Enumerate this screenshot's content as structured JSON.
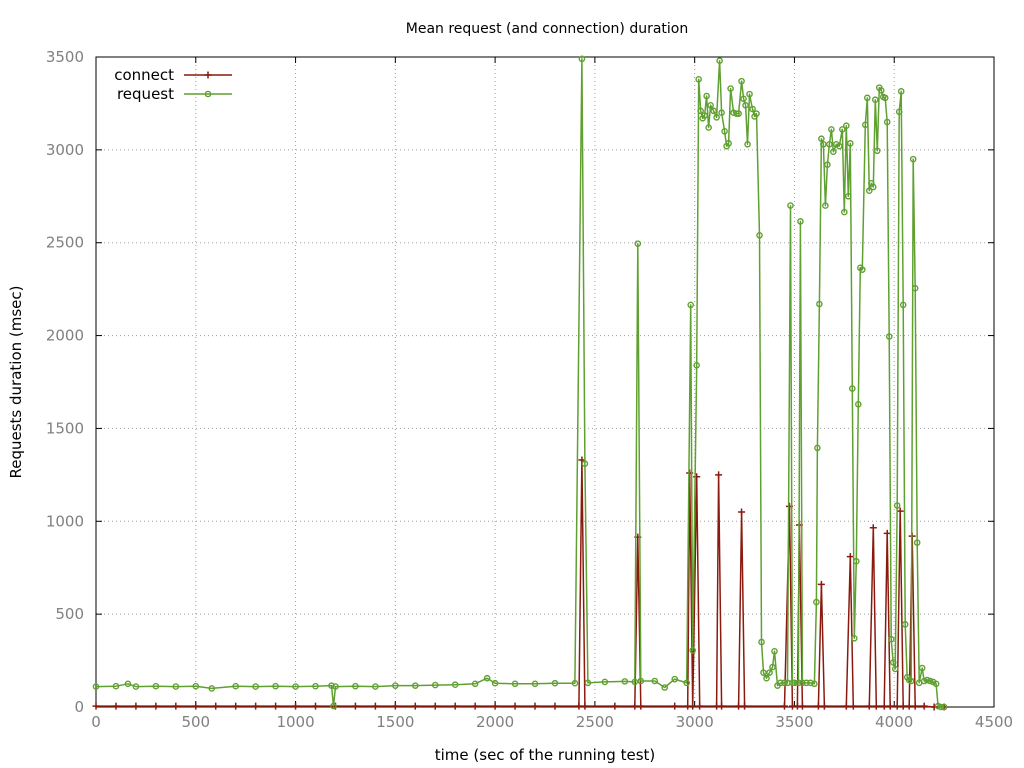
{
  "chart_data": {
    "type": "line",
    "title": "Mean request (and connection) duration",
    "xlabel": "time (sec of the running test)",
    "ylabel": "Requests duration (msec)",
    "xlim": [
      0,
      4500
    ],
    "ylim": [
      0,
      3500
    ],
    "xticks": [
      0,
      500,
      1000,
      1500,
      2000,
      2500,
      3000,
      3500,
      4000,
      4500
    ],
    "yticks": [
      0,
      500,
      1000,
      1500,
      2000,
      2500,
      3000,
      3500
    ],
    "grid": true,
    "legend": "top-left",
    "series": [
      {
        "name": "connect",
        "color": "#8b1a0e",
        "marker": "plus",
        "points": [
          [
            0,
            5
          ],
          [
            100,
            5
          ],
          [
            200,
            5
          ],
          [
            300,
            5
          ],
          [
            400,
            5
          ],
          [
            500,
            5
          ],
          [
            600,
            5
          ],
          [
            700,
            5
          ],
          [
            800,
            5
          ],
          [
            900,
            5
          ],
          [
            1000,
            5
          ],
          [
            1100,
            5
          ],
          [
            1200,
            5
          ],
          [
            1300,
            5
          ],
          [
            1400,
            5
          ],
          [
            1500,
            5
          ],
          [
            1600,
            5
          ],
          [
            1700,
            5
          ],
          [
            1800,
            5
          ],
          [
            1900,
            5
          ],
          [
            2000,
            5
          ],
          [
            2100,
            5
          ],
          [
            2200,
            5
          ],
          [
            2300,
            5
          ],
          [
            2420,
            5
          ],
          [
            2435,
            1330
          ],
          [
            2450,
            5
          ],
          [
            2600,
            5
          ],
          [
            2700,
            5
          ],
          [
            2715,
            915
          ],
          [
            2730,
            5
          ],
          [
            2900,
            5
          ],
          [
            2965,
            5
          ],
          [
            2975,
            1260
          ],
          [
            2990,
            5
          ],
          [
            3010,
            1240
          ],
          [
            3025,
            5
          ],
          [
            3110,
            5
          ],
          [
            3120,
            1250
          ],
          [
            3135,
            5
          ],
          [
            3220,
            5
          ],
          [
            3235,
            1050
          ],
          [
            3250,
            5
          ],
          [
            3450,
            5
          ],
          [
            3475,
            1080
          ],
          [
            3490,
            5
          ],
          [
            3515,
            5
          ],
          [
            3525,
            980
          ],
          [
            3540,
            5
          ],
          [
            3620,
            5
          ],
          [
            3635,
            660
          ],
          [
            3650,
            5
          ],
          [
            3760,
            5
          ],
          [
            3780,
            810
          ],
          [
            3795,
            5
          ],
          [
            3875,
            5
          ],
          [
            3895,
            965
          ],
          [
            3910,
            5
          ],
          [
            3950,
            5
          ],
          [
            3965,
            935
          ],
          [
            3980,
            5
          ],
          [
            4015,
            5
          ],
          [
            4030,
            1055
          ],
          [
            4045,
            5
          ],
          [
            4075,
            5
          ],
          [
            4090,
            920
          ],
          [
            4105,
            5
          ],
          [
            4150,
            5
          ],
          [
            4200,
            0
          ],
          [
            4250,
            0
          ]
        ]
      },
      {
        "name": "request",
        "color": "#5fa030",
        "marker": "circle",
        "points": [
          [
            0,
            110
          ],
          [
            100,
            112
          ],
          [
            160,
            125
          ],
          [
            200,
            110
          ],
          [
            300,
            112
          ],
          [
            400,
            110
          ],
          [
            500,
            112
          ],
          [
            580,
            100
          ],
          [
            700,
            112
          ],
          [
            800,
            110
          ],
          [
            900,
            112
          ],
          [
            1000,
            110
          ],
          [
            1100,
            112
          ],
          [
            1180,
            115
          ],
          [
            1190,
            5
          ],
          [
            1200,
            110
          ],
          [
            1300,
            112
          ],
          [
            1400,
            110
          ],
          [
            1500,
            115
          ],
          [
            1600,
            115
          ],
          [
            1700,
            118
          ],
          [
            1800,
            120
          ],
          [
            1900,
            125
          ],
          [
            1960,
            155
          ],
          [
            2000,
            128
          ],
          [
            2100,
            125
          ],
          [
            2200,
            125
          ],
          [
            2300,
            128
          ],
          [
            2400,
            128
          ],
          [
            2435,
            3490
          ],
          [
            2450,
            1310
          ],
          [
            2465,
            130
          ],
          [
            2550,
            135
          ],
          [
            2650,
            138
          ],
          [
            2700,
            135
          ],
          [
            2715,
            2495
          ],
          [
            2730,
            140
          ],
          [
            2800,
            140
          ],
          [
            2850,
            105
          ],
          [
            2900,
            150
          ],
          [
            2960,
            130
          ],
          [
            2980,
            2165
          ],
          [
            2990,
            305
          ],
          [
            3010,
            1840
          ],
          [
            3020,
            3380
          ],
          [
            3030,
            3210
          ],
          [
            3040,
            3170
          ],
          [
            3050,
            3185
          ],
          [
            3060,
            3290
          ],
          [
            3070,
            3120
          ],
          [
            3080,
            3240
          ],
          [
            3095,
            3210
          ],
          [
            3110,
            3175
          ],
          [
            3125,
            3480
          ],
          [
            3135,
            3200
          ],
          [
            3150,
            3100
          ],
          [
            3160,
            3020
          ],
          [
            3170,
            3035
          ],
          [
            3180,
            3330
          ],
          [
            3195,
            3200
          ],
          [
            3210,
            3195
          ],
          [
            3220,
            3195
          ],
          [
            3235,
            3370
          ],
          [
            3245,
            3275
          ],
          [
            3255,
            3240
          ],
          [
            3265,
            3030
          ],
          [
            3275,
            3300
          ],
          [
            3290,
            3220
          ],
          [
            3300,
            3180
          ],
          [
            3310,
            3195
          ],
          [
            3325,
            2540
          ],
          [
            3335,
            350
          ],
          [
            3345,
            185
          ],
          [
            3360,
            155
          ],
          [
            3375,
            185
          ],
          [
            3390,
            215
          ],
          [
            3400,
            300
          ],
          [
            3415,
            115
          ],
          [
            3430,
            130
          ],
          [
            3450,
            130
          ],
          [
            3465,
            130
          ],
          [
            3480,
            2700
          ],
          [
            3490,
            130
          ],
          [
            3500,
            130
          ],
          [
            3520,
            130
          ],
          [
            3530,
            2615
          ],
          [
            3540,
            130
          ],
          [
            3560,
            130
          ],
          [
            3580,
            130
          ],
          [
            3600,
            125
          ],
          [
            3610,
            565
          ],
          [
            3615,
            1395
          ],
          [
            3625,
            2170
          ],
          [
            3635,
            3060
          ],
          [
            3645,
            3030
          ],
          [
            3655,
            2700
          ],
          [
            3665,
            2920
          ],
          [
            3675,
            3030
          ],
          [
            3685,
            3110
          ],
          [
            3695,
            2990
          ],
          [
            3710,
            3030
          ],
          [
            3725,
            3020
          ],
          [
            3740,
            3110
          ],
          [
            3750,
            2665
          ],
          [
            3760,
            3130
          ],
          [
            3770,
            2750
          ],
          [
            3780,
            3035
          ],
          [
            3790,
            1715
          ],
          [
            3800,
            370
          ],
          [
            3810,
            785
          ],
          [
            3820,
            1630
          ],
          [
            3830,
            2365
          ],
          [
            3840,
            2355
          ],
          [
            3855,
            3135
          ],
          [
            3865,
            3280
          ],
          [
            3875,
            2780
          ],
          [
            3885,
            2820
          ],
          [
            3895,
            2800
          ],
          [
            3905,
            3270
          ],
          [
            3915,
            2995
          ],
          [
            3925,
            3335
          ],
          [
            3935,
            3320
          ],
          [
            3945,
            3285
          ],
          [
            3955,
            3280
          ],
          [
            3965,
            3150
          ],
          [
            3975,
            1995
          ],
          [
            3985,
            365
          ],
          [
            3995,
            240
          ],
          [
            4005,
            205
          ],
          [
            4015,
            1085
          ],
          [
            4025,
            3205
          ],
          [
            4035,
            3315
          ],
          [
            4045,
            2165
          ],
          [
            4055,
            445
          ],
          [
            4065,
            160
          ],
          [
            4075,
            145
          ],
          [
            4085,
            140
          ],
          [
            4095,
            2950
          ],
          [
            4105,
            2255
          ],
          [
            4115,
            885
          ],
          [
            4125,
            130
          ],
          [
            4140,
            210
          ],
          [
            4150,
            140
          ],
          [
            4165,
            145
          ],
          [
            4180,
            140
          ],
          [
            4195,
            135
          ],
          [
            4210,
            125
          ],
          [
            4220,
            5
          ],
          [
            4235,
            0
          ],
          [
            4250,
            0
          ]
        ]
      }
    ]
  }
}
